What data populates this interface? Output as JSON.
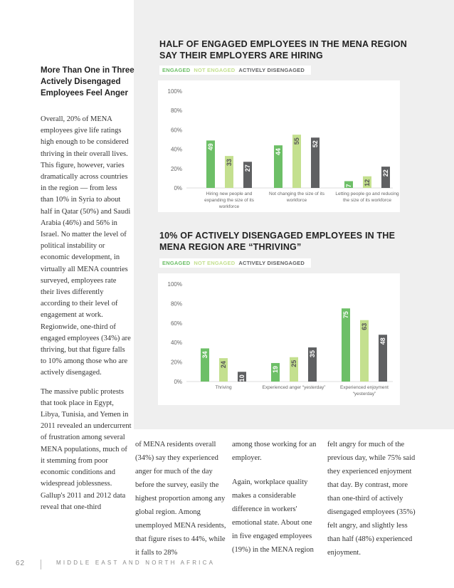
{
  "sidebar": {
    "title": "More Than One in Three Actively Disengaged Employees Feel Anger",
    "paragraphs": [
      "Overall, 20% of MENA employees give life ratings high enough to be considered thriving in their overall lives. This figure, however, varies dramatically across countries in the region — from less than 10% in Syria to about half in Qatar (50%) and Saudi Arabia (46%) and 56% in Israel. No matter the level of political instability or economic development, in virtually all MENA countries surveyed, employees rate their lives differently according to their level of engagement at work. Regionwide, one-third of engaged employees (34%) are thriving, but that figure falls to 10% among those who are actively disengaged.",
      "The massive public protests that took place in Egypt, Libya, Tunisia, and Yemen in 2011 revealed an undercurrent of frustration among several MENA populations, much of it stemming from poor economic conditions and widespread joblessness. Gallup's 2011 and 2012 data reveal that one-third"
    ]
  },
  "columns": [
    "of MENA residents overall (34%) say they experienced anger for much of the day before the survey, easily the highest proportion among any global region. Among unemployed MENA residents, that figure rises to 44%, while it falls to 28%",
    "among those working for an employer.",
    "Again, workplace quality makes a considerable difference in workers' emotional state. About one in five engaged employees (19%) in the MENA region",
    "felt angry for much of the previous day, while 75% said they experienced enjoyment that day. By contrast, more than one-third of actively disengaged employees (35%) felt angry, and slightly less than half (48%) experienced enjoyment."
  ],
  "legend": {
    "engaged": "ENGAGED",
    "not_engaged": "NOT ENGAGED",
    "actively_disengaged": "ACTIVELY DISENGAGED"
  },
  "colors": {
    "engaged": "#6dbf67",
    "not_engaged": "#c4e08f",
    "actively_disengaged": "#5f6062"
  },
  "chart_data": [
    {
      "type": "bar",
      "title": "HALF OF ENGAGED EMPLOYEES IN THE MENA REGION SAY THEIR EMPLOYERS ARE HIRING",
      "categories": [
        "Hiring new people and expanding the size of its workforce",
        "Not changing the size of its workforce",
        "Letting people go and reducing the size of its workforce"
      ],
      "series": [
        {
          "name": "ENGAGED",
          "values": [
            49,
            44,
            7
          ]
        },
        {
          "name": "NOT ENGAGED",
          "values": [
            33,
            55,
            12
          ]
        },
        {
          "name": "ACTIVELY DISENGAGED",
          "values": [
            27,
            52,
            22
          ]
        }
      ],
      "yticks": [
        "0%",
        "20%",
        "40%",
        "60%",
        "80%",
        "100%"
      ],
      "ylim": [
        0,
        100
      ],
      "legend": "top-left",
      "grid": false
    },
    {
      "type": "bar",
      "title": "10% OF ACTIVELY DISENGAGED EMPLOYEES IN THE MENA REGION ARE “THRIVING”",
      "categories": [
        "Thriving",
        "Experienced anger “yesterday”",
        "Experienced enjoyment “yesterday”"
      ],
      "series": [
        {
          "name": "ENGAGED",
          "values": [
            34,
            19,
            75
          ]
        },
        {
          "name": "NOT ENGAGED",
          "values": [
            24,
            25,
            63
          ]
        },
        {
          "name": "ACTIVELY DISENGAGED",
          "values": [
            10,
            35,
            48
          ]
        }
      ],
      "yticks": [
        "0%",
        "20%",
        "40%",
        "60%",
        "80%",
        "100%"
      ],
      "ylim": [
        0,
        100
      ],
      "legend": "top-left",
      "grid": false
    }
  ],
  "footer": {
    "page_number": "62",
    "section": "MIDDLE EAST AND NORTH AFRICA"
  }
}
